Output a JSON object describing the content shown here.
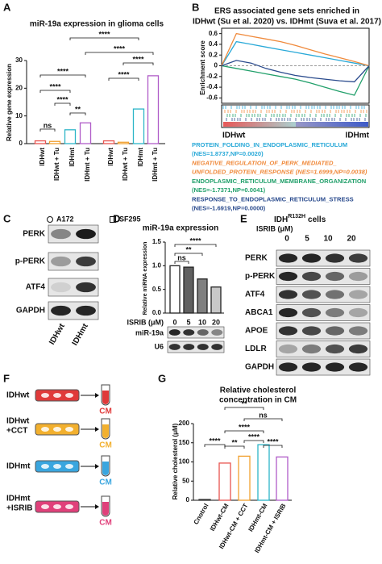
{
  "panel_labels": [
    "A",
    "B",
    "C",
    "D",
    "E",
    "F",
    "G"
  ],
  "chart_data": [
    {
      "type": "bar",
      "title": "miR-19a expression in glioma cells",
      "y_label": "Relative gene expression",
      "categories": [
        "IDHwt",
        "IDHwt + Tu",
        "IDHmt",
        "IDHmt + Tu",
        "IDHwt",
        "IDHwt + Tu",
        "IDHmt",
        "IDHmt + Tu"
      ],
      "values": [
        1,
        0.8,
        5,
        7.5,
        1,
        0.5,
        12.5,
        24.5
      ],
      "colors": [
        "#e8534f",
        "#f0a030",
        "#2cb5c8",
        "#b05cc8",
        "#e8534f",
        "#f0a030",
        "#2cb5c8",
        "#b05cc8"
      ],
      "outline": true,
      "ylim": [
        0,
        30
      ],
      "yticks": [
        0,
        10,
        20,
        30
      ],
      "annotations": [
        "ns",
        "****",
        "****",
        "****",
        "**",
        "****",
        "****",
        "****",
        "****"
      ],
      "legend": [
        {
          "label": "A172",
          "marker": "circle"
        },
        {
          "label": "SF295",
          "marker": "square"
        }
      ]
    },
    {
      "type": "line",
      "title_lines": [
        "ERS associated gene sets enriched in",
        "IDHwt (Su et al. 2020) vs. IDHmt (Suva et al. 2017)"
      ],
      "y_label": "Enrichment score",
      "x_labels": [
        "IDHwt",
        "IDHmt"
      ],
      "x": [
        0,
        10,
        20,
        30,
        40,
        50,
        60,
        70,
        80,
        90,
        100
      ],
      "xlim": [
        0,
        100
      ],
      "ylim": [
        -0.7,
        0.7
      ],
      "yticks": [
        -0.6,
        -0.4,
        -0.2,
        0,
        0.2,
        0.4,
        0.6
      ],
      "series": [
        {
          "legend_lines": [
            "PROTEIN_FOLDING_IN_ENDOPLASMIC_RETICULUM",
            "(NES=1.8737,NP=0.0020)"
          ],
          "color": "#29a9d8",
          "italic": false,
          "values": [
            0,
            0.45,
            0.4,
            0.35,
            0.3,
            0.25,
            0.2,
            0.15,
            0.1,
            0.05,
            0
          ]
        },
        {
          "legend_lines": [
            "NEGATIVE_REGULATION_OF_PERK_MEDIATED_",
            "UNFOLDED_PROTEIN_RESPONSE (NES=1.6999,NP=0.0038)"
          ],
          "color": "#f08a3c",
          "italic": true,
          "values": [
            0,
            0.6,
            0.55,
            0.5,
            0.45,
            0.38,
            0.3,
            0.22,
            0.15,
            0.08,
            0
          ]
        },
        {
          "legend_lines": [
            "ENDOPLASMIC_RETICULUM_MEMBRANE_ORGANIZATION",
            "(NES=-1.7371,NP=0.0041)"
          ],
          "color": "#22a06b",
          "italic": false,
          "values": [
            0,
            -0.05,
            -0.1,
            -0.15,
            -0.2,
            -0.25,
            -0.32,
            -0.4,
            -0.48,
            -0.55,
            0
          ]
        },
        {
          "legend_lines": [
            "RESPONSE_TO_ENDOPLASMIC_RETICULUM_STRESS",
            "(NES=-1.6919,NP=0.0000)"
          ],
          "color": "#2a4b8d",
          "italic": false,
          "values": [
            0,
            0.1,
            0.05,
            -0.05,
            -0.12,
            -0.18,
            -0.22,
            -0.25,
            -0.28,
            -0.3,
            0
          ]
        }
      ]
    },
    {
      "type": "bar",
      "title": "miR-19a expression",
      "y_label": "Relative miRNA expression",
      "x_label": "ISRIB (μM)",
      "categories": [
        "0",
        "5",
        "10",
        "20"
      ],
      "values": [
        1.0,
        0.97,
        0.72,
        0.55
      ],
      "colors": [
        "#ffffff",
        "#606060",
        "#808080",
        "#c8c8c8"
      ],
      "outline": false,
      "ylim": [
        0,
        1.5
      ],
      "yticks": [
        {
          "value": 0,
          "label": "0.0"
        },
        {
          "value": 0.5,
          "label": "0.5"
        },
        {
          "value": 1,
          "label": "1.0"
        },
        {
          "value": 1.5,
          "label": "1.5"
        }
      ],
      "annotations": [
        "****",
        "**",
        "ns"
      ],
      "blot_rows": [
        "miR-19a",
        "U6"
      ]
    },
    {
      "type": "bar",
      "title_lines": [
        "Relative cholesterol",
        "concentration in CM"
      ],
      "y_label": "Relative cholesterol (μM)",
      "categories": [
        "Cnotrol",
        "IDHwt-CM",
        "IDHwt-CM + CCT",
        "IDHmt-CM",
        "IDHmt-CM + ISRIB"
      ],
      "values": [
        2,
        97,
        115,
        145,
        113
      ],
      "colors": [
        "#333333",
        "#e8534f",
        "#f0a030",
        "#2cb5c8",
        "#b05cc8"
      ],
      "outline": true,
      "ylim": [
        0,
        200
      ],
      "yticks": [
        0,
        50,
        100,
        150,
        200
      ],
      "annotations": [
        "**",
        "ns",
        "****",
        "****",
        "**",
        "****",
        "****"
      ]
    }
  ],
  "blot_C": {
    "rows": [
      "PERK",
      "p-PERK",
      "ATF4",
      "GAPDH"
    ],
    "lanes": [
      "IDHwt",
      "IDHmt"
    ]
  },
  "blot_E": {
    "title": "IDH",
    "title_sup": "R132H",
    "title_suffix": "cells",
    "x_label": "ISRIB (μM)",
    "lanes": [
      "0",
      "5",
      "10",
      "20"
    ],
    "rows": [
      "PERK",
      "p-PERK",
      "ATF4",
      "ABCA1",
      "APOE",
      "LDLR",
      "GAPDH"
    ]
  },
  "diagram_F": {
    "groups": [
      {
        "lines": [
          "IDHwt"
        ],
        "output": "CM",
        "color": "#e03a3a"
      },
      {
        "lines": [
          "IDHwt",
          "+CCT"
        ],
        "output": "CM",
        "color": "#f2b02e"
      },
      {
        "lines": [
          "IDHmt"
        ],
        "output": "CM",
        "color": "#3aa6df"
      },
      {
        "lines": [
          "IDHmt",
          "+ISRIB"
        ],
        "output": "CM",
        "color": "#e0407a"
      }
    ]
  }
}
